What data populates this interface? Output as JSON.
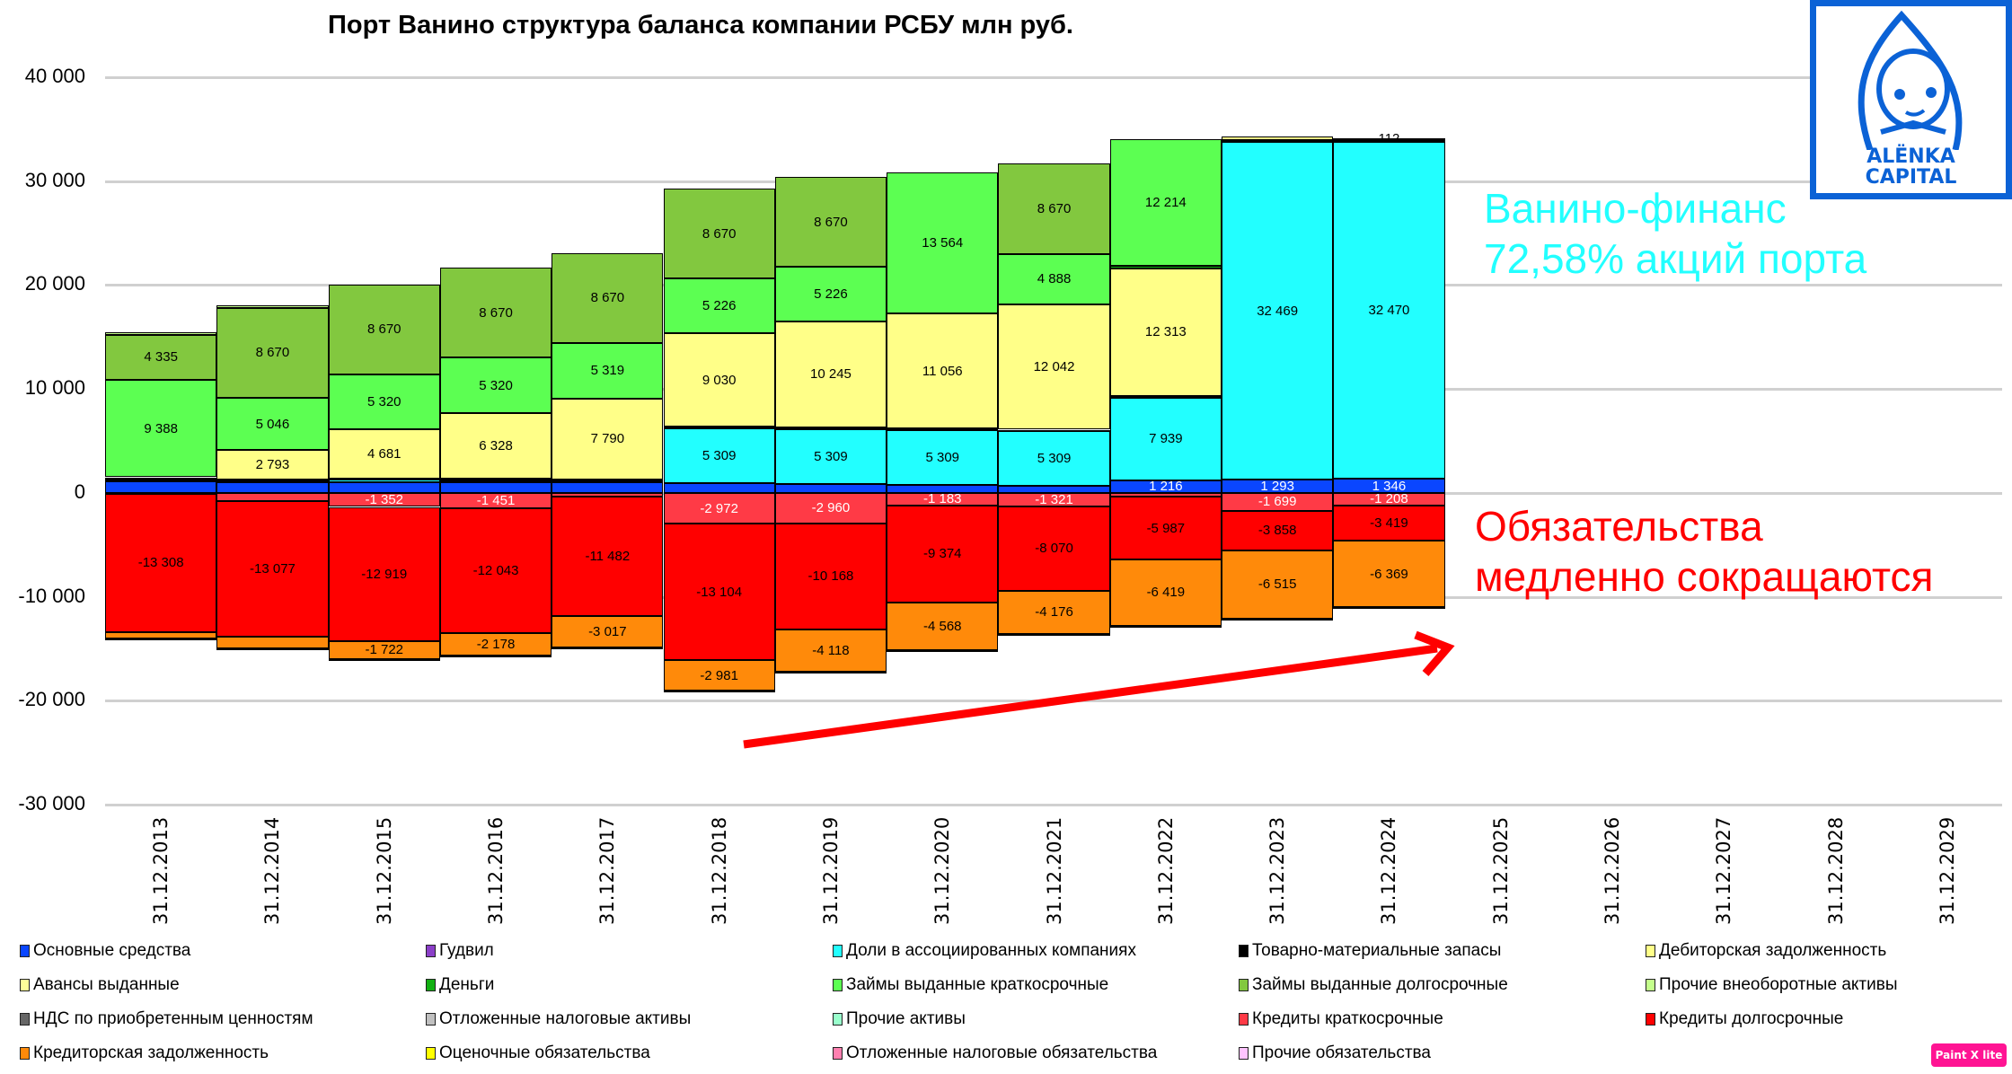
{
  "title": "Порт Ванино структура баланса компании РСБУ млн руб.",
  "annotations": {
    "cyan_line1": "Ванино-финанс",
    "cyan_line2": "72,58% акций порта",
    "red_line1": "Обязательства",
    "red_line2": "медленно сокращаются"
  },
  "logo": {
    "line1": "ALËNKA",
    "line2": "CAPITAL"
  },
  "watermark": "Paint X lite",
  "colors": {
    "fixed_assets": "#0a46ff",
    "goodwill": "#8b3fc8",
    "associates": "#22ffff",
    "inventory": "#000000",
    "receivables": "#ffff88",
    "advances": "#ffff99",
    "cash": "#12b012",
    "loans_short": "#5cff52",
    "loans_long": "#82c83f",
    "other_noncurrent": "#c4ff8c",
    "vat": "#666666",
    "deferred_tax_assets": "#c0c0c0",
    "other_assets": "#99ffcc",
    "credits_short": "#ff3a46",
    "credits_long": "#ff0000",
    "payables": "#ff8a0a",
    "provisions": "#ffff00",
    "deferred_tax_liab": "#ff80b0",
    "other_liab": "#ffc4ff",
    "arrow": "#ff0000"
  },
  "chart_data": {
    "type": "bar",
    "stacked": true,
    "title": "Порт Ванино структура баланса компании РСБУ млн руб.",
    "xlabel": "",
    "ylabel": "",
    "ylim": [
      -30000,
      40000
    ],
    "yticks": [
      "40 000",
      "30 000",
      "20 000",
      "10 000",
      "0",
      "-10 000",
      "-20 000",
      "-30 000"
    ],
    "ytick_values": [
      40000,
      30000,
      20000,
      10000,
      0,
      -10000,
      -20000,
      -30000
    ],
    "grid": true,
    "legend_position": "bottom",
    "categories": [
      "31.12.2013",
      "31.12.2014",
      "31.12.2015",
      "31.12.2016",
      "31.12.2017",
      "31.12.2018",
      "31.12.2019",
      "31.12.2020",
      "31.12.2021",
      "31.12.2022",
      "31.12.2023",
      "31.12.2024",
      "31.12.2025",
      "31.12.2026",
      "31.12.2027",
      "31.12.2028",
      "31.12.2029"
    ],
    "series": [
      {
        "key": "fixed_assets",
        "name": "Основные средства",
        "values": [
          1100,
          1050,
          1050,
          1000,
          1000,
          900,
          850,
          750,
          650,
          1216,
          1293,
          1346,
          null,
          null,
          null,
          null,
          null
        ],
        "labels": [
          "",
          "",
          "",
          "",
          "",
          "",
          "",
          "",
          "",
          "1 216",
          "1 293",
          "1 346",
          "",
          "",
          "",
          "",
          ""
        ]
      },
      {
        "key": "goodwill",
        "name": "Гудвил",
        "values": [
          0,
          0,
          0,
          0,
          0,
          0,
          0,
          0,
          0,
          0,
          0,
          0,
          null,
          null,
          null,
          null,
          null
        ],
        "labels": []
      },
      {
        "key": "associates",
        "name": "Доли в ассоциированных компаниях",
        "values": [
          0,
          200,
          200,
          200,
          200,
          5309,
          5309,
          5309,
          5309,
          7939,
          32469,
          32470,
          null,
          null,
          null,
          null,
          null
        ],
        "labels": [
          "",
          "",
          "",
          "",
          "",
          "5 309",
          "5 309",
          "5 309",
          "5 309",
          "7 939",
          "32 469",
          "32 470",
          "",
          "",
          "",
          "",
          ""
        ]
      },
      {
        "key": "inventory",
        "name": "Товарно-материальные запасы",
        "values": [
          150,
          60,
          150,
          150,
          100,
          150,
          120,
          120,
          120,
          150,
          200,
          200,
          null,
          null,
          null,
          null,
          null
        ],
        "labels": []
      },
      {
        "key": "receivables",
        "name": "Дебиторская задолженность",
        "values": [
          250,
          2793,
          4681,
          6328,
          7790,
          9030,
          10245,
          11056,
          12042,
          12313,
          300,
          112,
          null,
          null,
          null,
          null,
          null
        ],
        "labels": [
          "",
          "2 793",
          "4 681",
          "6 328",
          "7 790",
          "9 030",
          "10 245",
          "11 056",
          "12 042",
          "12 313",
          "",
          "112",
          "",
          "",
          "",
          "",
          ""
        ]
      },
      {
        "key": "advances",
        "name": "Авансы выданные",
        "values": [
          0,
          0,
          0,
          0,
          0,
          0,
          0,
          0,
          0,
          0,
          0,
          0,
          null,
          null,
          null,
          null,
          null
        ],
        "labels": []
      },
      {
        "key": "cash",
        "name": "Деньги",
        "values": [
          0,
          0,
          0,
          0,
          0,
          0,
          0,
          0,
          0,
          200,
          0,
          0,
          null,
          null,
          null,
          null,
          null
        ],
        "labels": []
      },
      {
        "key": "loans_short",
        "name": "Займы выданные краткосрочные",
        "values": [
          9388,
          5046,
          5320,
          5320,
          5319,
          5226,
          5226,
          13564,
          4888,
          12214,
          0,
          0,
          null,
          null,
          null,
          null,
          null
        ],
        "labels": [
          "9 388",
          "5 046",
          "5 320",
          "5 320",
          "5 319",
          "5 226",
          "5 226",
          "13 564",
          "4 888",
          "12 214",
          "",
          "",
          "",
          "",
          "",
          "",
          ""
        ]
      },
      {
        "key": "loans_long",
        "name": "Займы выданные долгосрочные",
        "values": [
          4335,
          8670,
          8670,
          8670,
          8670,
          8670,
          8670,
          0,
          8670,
          0,
          0,
          0,
          null,
          null,
          null,
          null,
          null
        ],
        "labels": [
          "4 335",
          "8 670",
          "8 670",
          "8 670",
          "8 670",
          "8 670",
          "8 670",
          "",
          "8 670",
          "",
          "",
          "",
          "",
          "",
          "",
          "",
          ""
        ]
      },
      {
        "key": "other_noncurrent",
        "name": "Прочие внеоборотные активы",
        "values": [
          200,
          200,
          0,
          0,
          0,
          0,
          0,
          0,
          0,
          0,
          0,
          0,
          null,
          null,
          null,
          null,
          null
        ],
        "labels": []
      },
      {
        "key": "vat",
        "name": "НДС по приобретенным ценностям",
        "values": [
          0,
          0,
          0,
          0,
          0,
          0,
          0,
          0,
          0,
          0,
          0,
          0,
          null,
          null,
          null,
          null,
          null
        ],
        "labels": []
      },
      {
        "key": "deferred_tax_assets",
        "name": "Отложенные налоговые активы",
        "values": [
          0,
          0,
          0,
          0,
          0,
          0,
          0,
          0,
          0,
          0,
          0,
          0,
          null,
          null,
          null,
          null,
          null
        ],
        "labels": []
      },
      {
        "key": "other_assets",
        "name": "Прочие активы",
        "values": [
          0,
          0,
          0,
          0,
          0,
          0,
          0,
          0,
          0,
          0,
          0,
          0,
          null,
          null,
          null,
          null,
          null
        ],
        "labels": []
      },
      {
        "key": "credits_short",
        "name": "Кредиты краткосрочные",
        "values": [
          -100,
          -750,
          -1352,
          -1451,
          -400,
          -2972,
          -2960,
          -1183,
          -1321,
          -400,
          -1699,
          -1208,
          null,
          null,
          null,
          null,
          null
        ],
        "labels": [
          "",
          "",
          "-1 352",
          "-1 451",
          "",
          "-2 972",
          "-2 960",
          "-1 183",
          "-1 321",
          "",
          "-1 699",
          "-1 208",
          "",
          "",
          "",
          "",
          ""
        ]
      },
      {
        "key": "credits_long",
        "name": "Кредиты долгосрочные",
        "values": [
          -13308,
          -13077,
          -12919,
          -12043,
          -11482,
          -13104,
          -10168,
          -9374,
          -8070,
          -5987,
          -3858,
          -3419,
          null,
          null,
          null,
          null,
          null
        ],
        "labels": [
          "-13 308",
          "-13 077",
          "-12 919",
          "-12 043",
          "-11 482",
          "-13 104",
          "-10 168",
          "-9 374",
          "-8 070",
          "-5 987",
          "-3 858",
          "-3 419",
          "",
          "",
          "",
          "",
          ""
        ]
      },
      {
        "key": "payables",
        "name": "Кредиторская задолженность",
        "values": [
          -600,
          -1100,
          -1722,
          -2178,
          -3017,
          -2981,
          -4118,
          -4568,
          -4176,
          -6419,
          -6515,
          -6369,
          null,
          null,
          null,
          null,
          null
        ],
        "labels": [
          "",
          "",
          "-1 722",
          "-2 178",
          "-3 017",
          "-2 981",
          "-4 118",
          "-4 568",
          "-4 176",
          "-6 419",
          "-6 515",
          "-6 369",
          "",
          "",
          "",
          "",
          ""
        ]
      },
      {
        "key": "provisions",
        "name": "Оценочные обязательства",
        "values": [
          0,
          0,
          0,
          0,
          0,
          0,
          0,
          0,
          0,
          0,
          0,
          -50,
          null,
          null,
          null,
          null,
          null
        ],
        "labels": []
      },
      {
        "key": "deferred_tax_liab",
        "name": "Отложенные налоговые обязательства",
        "values": [
          0,
          0,
          0,
          0,
          0,
          0,
          0,
          0,
          0,
          0,
          0,
          0,
          null,
          null,
          null,
          null,
          null
        ],
        "labels": []
      },
      {
        "key": "other_liab",
        "name": "Прочие обязательства",
        "values": [
          -80,
          -80,
          -80,
          -80,
          -80,
          -80,
          -80,
          -80,
          -80,
          -150,
          -100,
          0,
          null,
          null,
          null,
          null,
          null
        ],
        "labels": []
      }
    ]
  },
  "legend": [
    {
      "key": "fixed_assets",
      "label": "Основные средства"
    },
    {
      "key": "goodwill",
      "label": "Гудвил"
    },
    {
      "key": "associates",
      "label": "Доли в ассоциированных компаниях"
    },
    {
      "key": "inventory",
      "label": "Товарно-материальные запасы"
    },
    {
      "key": "receivables",
      "label": "Дебиторская задолженность"
    },
    {
      "key": "advances",
      "label": "Авансы выданные"
    },
    {
      "key": "cash",
      "label": "Деньги"
    },
    {
      "key": "loans_short",
      "label": "Займы выданные краткосрочные"
    },
    {
      "key": "loans_long",
      "label": "Займы выданные долгосрочные"
    },
    {
      "key": "other_noncurrent",
      "label": "Прочие внеоборотные активы"
    },
    {
      "key": "vat",
      "label": "НДС по приобретенным ценностям"
    },
    {
      "key": "deferred_tax_assets",
      "label": "Отложенные налоговые активы"
    },
    {
      "key": "other_assets",
      "label": "Прочие активы"
    },
    {
      "key": "credits_short",
      "label": "Кредиты краткосрочные"
    },
    {
      "key": "credits_long",
      "label": "Кредиты долгосрочные"
    },
    {
      "key": "payables",
      "label": "Кредиторская задолженность"
    },
    {
      "key": "provisions",
      "label": "Оценочные обязательства"
    },
    {
      "key": "deferred_tax_liab",
      "label": "Отложенные налоговые обязательства"
    },
    {
      "key": "other_liab",
      "label": "Прочие обязательства"
    }
  ]
}
